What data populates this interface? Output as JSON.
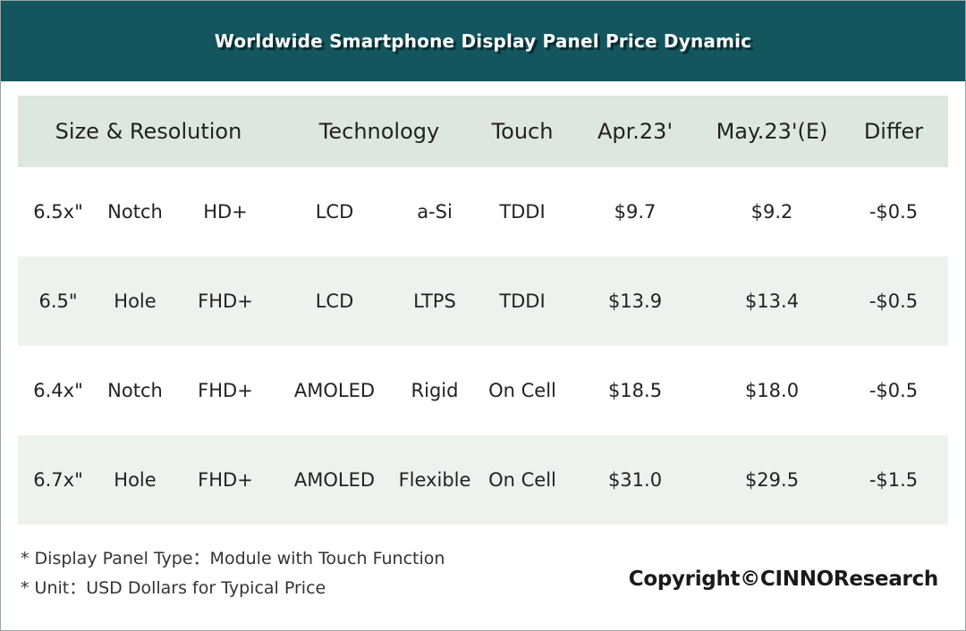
{
  "title": "Worldwide Smartphone Display Panel Price Dynamic",
  "colors": {
    "title_bg": "#13565e",
    "header_bg": "#dde7df",
    "stripe_bg": "#edf2ee",
    "plain_bg": "#ffffff"
  },
  "chart_data": {
    "type": "table",
    "title": "Worldwide Smartphone Display Panel Price Dynamic",
    "headers": [
      "Size & Resolution",
      "Technology",
      "Touch",
      "Apr.23'",
      "May.23'(E)",
      "Differ"
    ],
    "rows": [
      {
        "size": "6.5x\"",
        "cutout": "Notch",
        "resolution": "HD+",
        "display": "LCD",
        "backplane": "a-Si",
        "touch": "TDDI",
        "apr": "$9.7",
        "may": "$9.2",
        "differ": "-$0.5"
      },
      {
        "size": "6.5\"",
        "cutout": "Hole",
        "resolution": "FHD+",
        "display": "LCD",
        "backplane": "LTPS",
        "touch": "TDDI",
        "apr": "$13.9",
        "may": "$13.4",
        "differ": "-$0.5"
      },
      {
        "size": "6.4x\"",
        "cutout": "Notch",
        "resolution": "FHD+",
        "display": "AMOLED",
        "backplane": "Rigid",
        "touch": "On Cell",
        "apr": "$18.5",
        "may": "$18.0",
        "differ": "-$0.5"
      },
      {
        "size": "6.7x\"",
        "cutout": "Hole",
        "resolution": "FHD+",
        "display": "AMOLED",
        "backplane": "Flexible",
        "touch": "On Cell",
        "apr": "$31.0",
        "may": "$29.5",
        "differ": "-$1.5"
      }
    ],
    "values_apr": [
      9.7,
      13.9,
      18.5,
      31.0
    ],
    "values_may": [
      9.2,
      13.4,
      18.0,
      29.5
    ],
    "values_differ": [
      -0.5,
      -0.5,
      -0.5,
      -1.5
    ]
  },
  "notes": [
    "* Display Panel Type：Module with Touch Function",
    "* Unit：USD Dollars for Typical Price"
  ],
  "copyright": "Copyright©CINNOResearch"
}
